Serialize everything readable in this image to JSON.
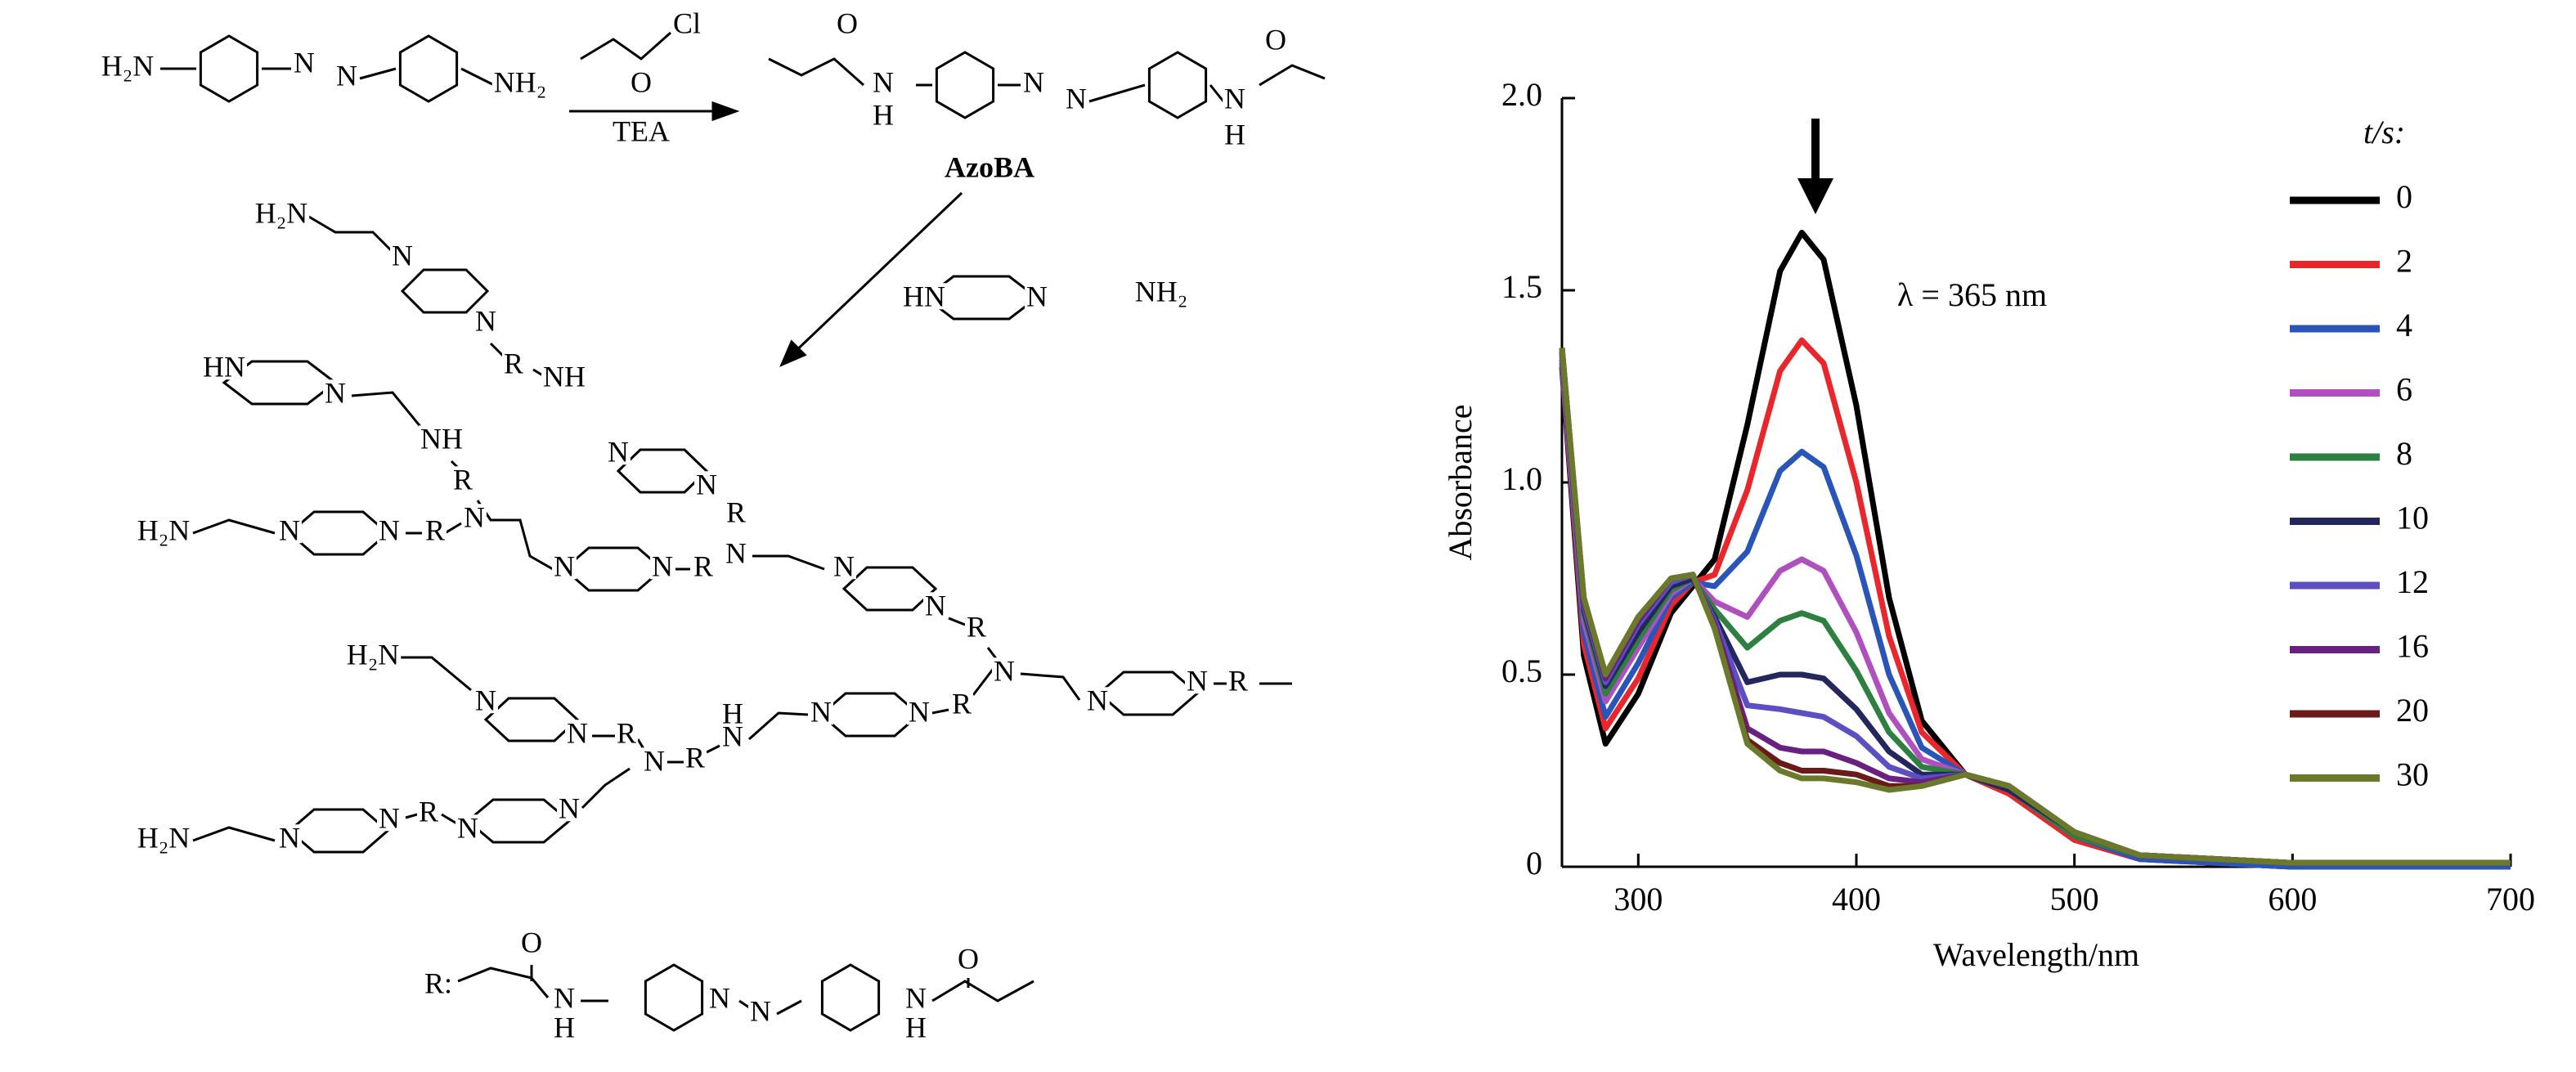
{
  "chart_data": {
    "type": "line",
    "xlabel": "Wavelength/nm",
    "ylabel": "Absorbance",
    "annotation": "λ = 365 nm",
    "legend_title": "t/s:",
    "x": [
      265,
      275,
      285,
      300,
      315,
      325,
      335,
      350,
      365,
      375,
      385,
      400,
      415,
      430,
      450,
      470,
      500,
      530,
      600,
      700
    ],
    "xlim": [
      265,
      700
    ],
    "xticks": [
      300,
      400,
      500,
      600,
      700
    ],
    "ylim": [
      0,
      2
    ],
    "yticks": [
      0,
      0.5,
      {
        "value": 1,
        "label": "1.0"
      },
      1.5,
      {
        "value": 2,
        "label": "2.0"
      }
    ],
    "legend": "right",
    "series": [
      {
        "name": "0",
        "color": "#000000",
        "values": [
          1.3,
          0.55,
          0.32,
          0.45,
          0.66,
          0.73,
          0.8,
          1.15,
          1.55,
          1.65,
          1.58,
          1.2,
          0.7,
          0.38,
          0.24,
          0.19,
          0.07,
          0.02,
          0.0,
          0.0
        ]
      },
      {
        "name": "2",
        "color": "#e8262b",
        "values": [
          1.31,
          0.58,
          0.36,
          0.49,
          0.68,
          0.74,
          0.76,
          0.98,
          1.29,
          1.37,
          1.31,
          1.0,
          0.6,
          0.35,
          0.24,
          0.19,
          0.07,
          0.02,
          0.0,
          0.0
        ]
      },
      {
        "name": "4",
        "color": "#2a55b8",
        "values": [
          1.32,
          0.61,
          0.39,
          0.53,
          0.7,
          0.74,
          0.73,
          0.82,
          1.03,
          1.08,
          1.04,
          0.81,
          0.5,
          0.31,
          0.24,
          0.2,
          0.08,
          0.02,
          0.0,
          0.0
        ]
      },
      {
        "name": "6",
        "color": "#b04fc0",
        "values": [
          1.33,
          0.64,
          0.43,
          0.57,
          0.71,
          0.75,
          0.69,
          0.65,
          0.77,
          0.8,
          0.77,
          0.61,
          0.4,
          0.28,
          0.24,
          0.2,
          0.08,
          0.03,
          0.01,
          0.01
        ]
      },
      {
        "name": "8",
        "color": "#2e8040",
        "values": [
          1.34,
          0.66,
          0.45,
          0.59,
          0.72,
          0.75,
          0.67,
          0.57,
          0.64,
          0.66,
          0.64,
          0.51,
          0.35,
          0.26,
          0.24,
          0.2,
          0.08,
          0.03,
          0.01,
          0.01
        ]
      },
      {
        "name": "10",
        "color": "#24275e",
        "values": [
          1.34,
          0.67,
          0.47,
          0.61,
          0.73,
          0.75,
          0.65,
          0.48,
          0.5,
          0.5,
          0.49,
          0.41,
          0.3,
          0.24,
          0.24,
          0.2,
          0.09,
          0.03,
          0.01,
          0.01
        ]
      },
      {
        "name": "12",
        "color": "#5b4fc2",
        "values": [
          1.34,
          0.68,
          0.48,
          0.63,
          0.74,
          0.76,
          0.64,
          0.42,
          0.41,
          0.4,
          0.39,
          0.34,
          0.26,
          0.23,
          0.24,
          0.21,
          0.09,
          0.03,
          0.01,
          0.01
        ]
      },
      {
        "name": "16",
        "color": "#6a2080",
        "values": [
          1.35,
          0.69,
          0.49,
          0.64,
          0.75,
          0.76,
          0.63,
          0.36,
          0.31,
          0.3,
          0.3,
          0.27,
          0.23,
          0.22,
          0.24,
          0.21,
          0.09,
          0.03,
          0.01,
          0.01
        ]
      },
      {
        "name": "20",
        "color": "#6b1a1a",
        "values": [
          1.35,
          0.7,
          0.5,
          0.65,
          0.75,
          0.76,
          0.62,
          0.33,
          0.27,
          0.25,
          0.25,
          0.24,
          0.21,
          0.21,
          0.24,
          0.21,
          0.09,
          0.03,
          0.01,
          0.01
        ]
      },
      {
        "name": "30",
        "color": "#6b7a2a",
        "values": [
          1.35,
          0.7,
          0.5,
          0.65,
          0.75,
          0.76,
          0.62,
          0.32,
          0.25,
          0.23,
          0.23,
          0.22,
          0.2,
          0.21,
          0.24,
          0.21,
          0.09,
          0.03,
          0.01,
          0.01
        ]
      }
    ]
  },
  "scheme": {
    "labels": [
      "H₂N",
      "N",
      "N",
      "NH₂",
      "Cl",
      "O",
      "TEA",
      "O",
      "N",
      "H",
      "N",
      "N",
      "N",
      "H",
      "O",
      "AzoBA",
      "HN",
      "N",
      "NH₂",
      "H₂N",
      "N",
      "N",
      "R",
      "NH",
      "HN",
      "N",
      "NH",
      "R",
      "N",
      "H₂N",
      "N",
      "N",
      "R",
      "N",
      "N",
      "R",
      "N",
      "R",
      "N",
      "N",
      "N",
      "N",
      "R",
      "N",
      "N",
      "N",
      "R",
      "H₂N",
      "N",
      "N",
      "R",
      "N",
      "R",
      "N",
      "H",
      "N",
      "N",
      "R",
      "H₂N",
      "N",
      "N",
      "R",
      "N",
      "N",
      "R:",
      "O",
      "N",
      "H",
      "N",
      "N",
      "N",
      "H",
      "O"
    ]
  }
}
